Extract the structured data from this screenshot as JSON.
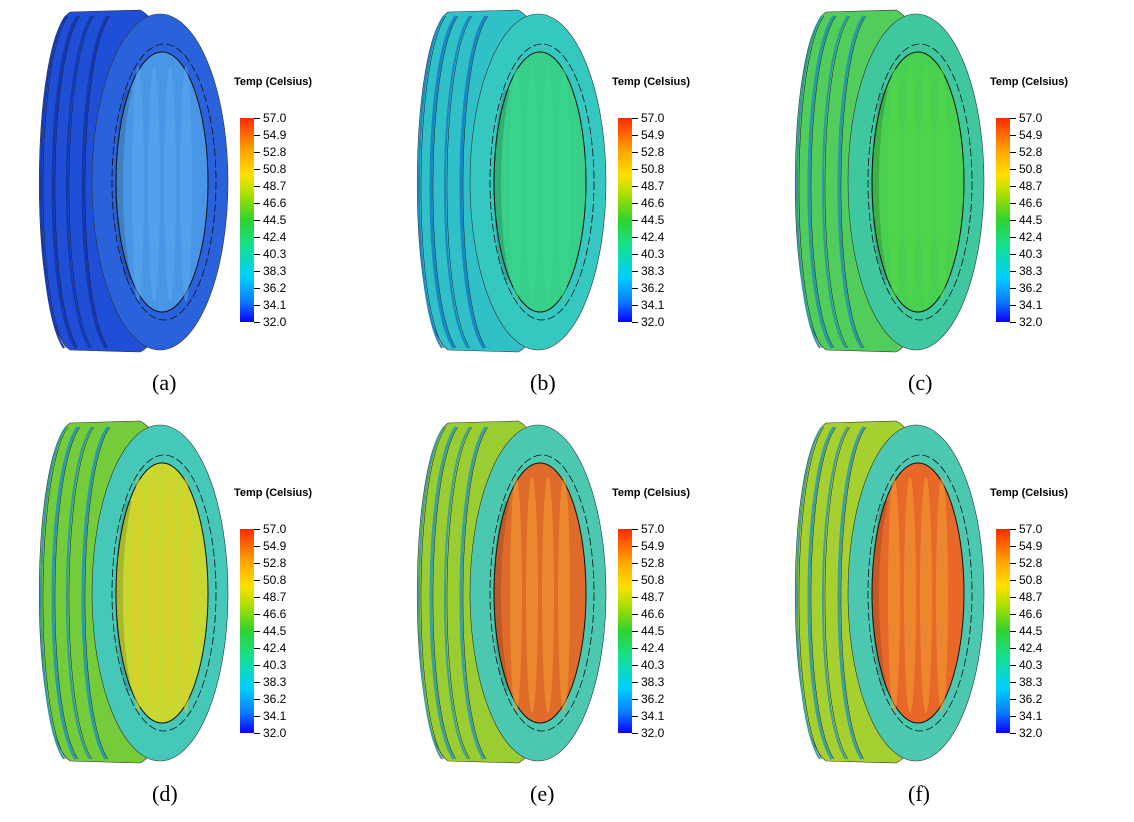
{
  "legend": {
    "title": "Temp (Celsius)",
    "ticks": [
      "57.0",
      "54.9",
      "52.8",
      "50.8",
      "48.7",
      "46.6",
      "44.5",
      "42.4",
      "40.3",
      "38.3",
      "36.2",
      "34.1",
      "32.0"
    ]
  },
  "panels": [
    {
      "label": "(a)",
      "tread": "#1f4fd6",
      "tread_dark": "#1538b0",
      "sidewall": "#2a62dc",
      "inner": "#4a96e6",
      "inner_stripe": "#5aa8ec"
    },
    {
      "label": "(b)",
      "tread": "#2fc0c8",
      "tread_dark": "#1b86c6",
      "sidewall": "#35c8c0",
      "inner": "#38d088",
      "inner_stripe": "#3ad890"
    },
    {
      "label": "(c)",
      "tread": "#52cc5a",
      "tread_dark": "#2a98a8",
      "sidewall": "#3fc8a0",
      "inner": "#48d050",
      "inner_stripe": "#55d848"
    },
    {
      "label": "(d)",
      "tread": "#74cc3a",
      "tread_dark": "#2a9ab0",
      "sidewall": "#46c8b8",
      "inner": "#c8d830",
      "inner_stripe": "#e0d028"
    },
    {
      "label": "(e)",
      "tread": "#9acd32",
      "tread_dark": "#3aa0a0",
      "sidewall": "#4cc8b0",
      "inner": "#e06a2a",
      "inner_stripe": "#f0a030"
    },
    {
      "label": "(f)",
      "tread": "#a6d030",
      "tread_dark": "#3aa0a0",
      "sidewall": "#4cc8b0",
      "inner": "#e8682a",
      "inner_stripe": "#f0a030"
    }
  ]
}
